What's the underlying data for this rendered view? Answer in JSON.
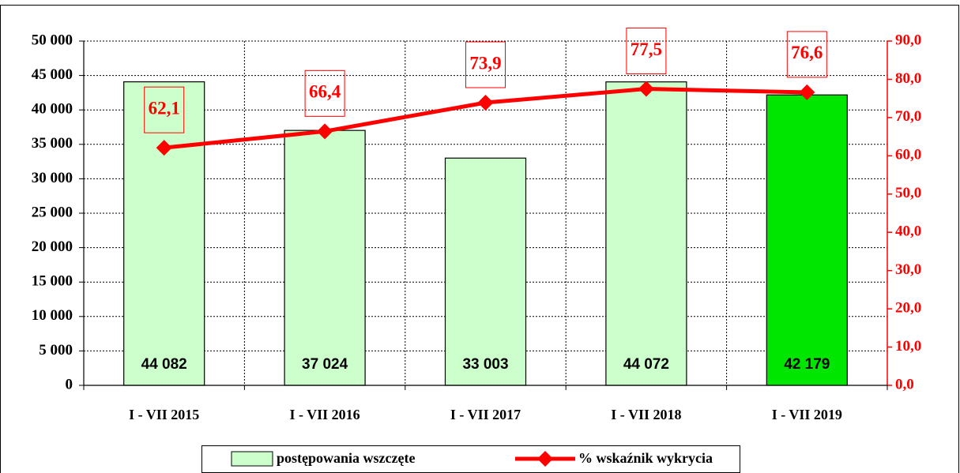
{
  "chart_data": {
    "type": "bar-line",
    "categories": [
      "I - VII 2015",
      "I - VII 2016",
      "I - VII 2017",
      "I - VII 2018",
      "I - VII 2019"
    ],
    "series": [
      {
        "name": "postępowania wszczęte",
        "type": "bar",
        "color": "#ccffcc",
        "colors": [
          "#ccffcc",
          "#ccffcc",
          "#ccffcc",
          "#ccffcc",
          "#00e600"
        ],
        "values": [
          44082,
          37024,
          33003,
          44072,
          42179
        ],
        "value_labels": [
          "44 082",
          "37 024",
          "33 003",
          "44 072",
          "42 179"
        ]
      },
      {
        "name": "% wskaźnik wykrycia",
        "type": "line",
        "axis": "y2",
        "color": "#ff0000",
        "values": [
          62.1,
          66.4,
          73.9,
          77.5,
          76.6
        ],
        "value_labels": [
          "62,1",
          "66,4",
          "73,9",
          "77,5",
          "76,6"
        ]
      }
    ],
    "ylim": [
      0,
      50000
    ],
    "yticks": [
      0,
      {
        "value": 5000,
        "label": "5 000"
      },
      {
        "value": 10000,
        "label": "10 000"
      },
      {
        "value": 15000,
        "label": "15 000"
      },
      {
        "value": 20000,
        "label": "20 000"
      },
      {
        "value": 25000,
        "label": "25 000"
      },
      {
        "value": 30000,
        "label": "30 000"
      },
      {
        "value": 35000,
        "label": "35 000"
      },
      {
        "value": 40000,
        "label": "40 000"
      },
      {
        "value": 45000,
        "label": "45 000"
      },
      {
        "value": 50000,
        "label": "50 000"
      }
    ],
    "y2lim": [
      0,
      90
    ],
    "y2ticks": [
      {
        "value": 0,
        "label": "0,0"
      },
      {
        "value": 10,
        "label": "10,0"
      },
      {
        "value": 20,
        "label": "20,0"
      },
      {
        "value": 30,
        "label": "30,0"
      },
      {
        "value": 40,
        "label": "40,0"
      },
      {
        "value": 50,
        "label": "50,0"
      },
      {
        "value": 60,
        "label": "60,0"
      },
      {
        "value": 70,
        "label": "70,0"
      },
      {
        "value": 80,
        "label": "80,0"
      },
      {
        "value": 90,
        "label": "90,0"
      }
    ],
    "grid": true,
    "legend": "bottom"
  }
}
